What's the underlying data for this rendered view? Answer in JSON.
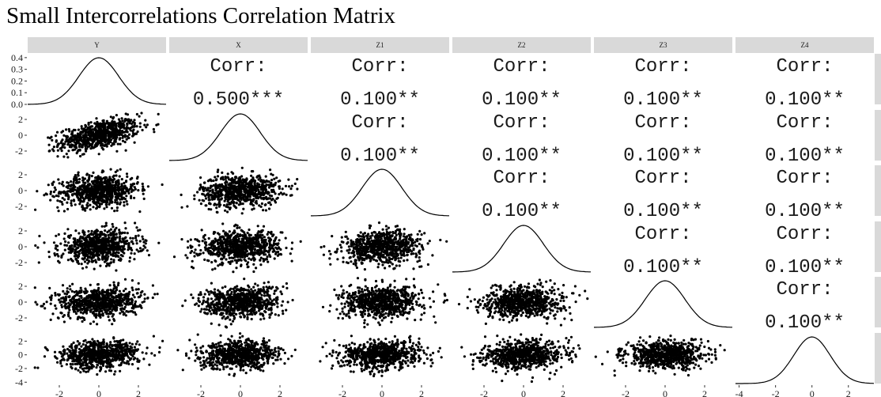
{
  "title": "Small Intercorrelations Correlation Matrix",
  "chart_data": {
    "type": "scatter",
    "title": "Small Intercorrelations Correlation Matrix",
    "variables": [
      "Y",
      "X",
      "Z1",
      "Z2",
      "Z3",
      "Z4"
    ],
    "lower_panels": "scatter",
    "diagonal_panels": "density",
    "upper_panels": "correlation",
    "correlation_label": "Corr:",
    "correlations": [
      {
        "row": "Y",
        "col": "X",
        "value": 0.5,
        "label": "0.500***"
      },
      {
        "row": "Y",
        "col": "Z1",
        "value": 0.1,
        "label": "0.100**"
      },
      {
        "row": "Y",
        "col": "Z2",
        "value": 0.1,
        "label": "0.100**"
      },
      {
        "row": "Y",
        "col": "Z3",
        "value": 0.1,
        "label": "0.100**"
      },
      {
        "row": "Y",
        "col": "Z4",
        "value": 0.1,
        "label": "0.100**"
      },
      {
        "row": "X",
        "col": "Z1",
        "value": 0.1,
        "label": "0.100**"
      },
      {
        "row": "X",
        "col": "Z2",
        "value": 0.1,
        "label": "0.100**"
      },
      {
        "row": "X",
        "col": "Z3",
        "value": 0.1,
        "label": "0.100**"
      },
      {
        "row": "X",
        "col": "Z4",
        "value": 0.1,
        "label": "0.100**"
      },
      {
        "row": "Z1",
        "col": "Z2",
        "value": 0.1,
        "label": "0.100**"
      },
      {
        "row": "Z1",
        "col": "Z3",
        "value": 0.1,
        "label": "0.100**"
      },
      {
        "row": "Z1",
        "col": "Z4",
        "value": 0.1,
        "label": "0.100**"
      },
      {
        "row": "Z2",
        "col": "Z3",
        "value": 0.1,
        "label": "0.100**"
      },
      {
        "row": "Z2",
        "col": "Z4",
        "value": 0.1,
        "label": "0.100**"
      },
      {
        "row": "Z3",
        "col": "Z4",
        "value": 0.1,
        "label": "0.100**"
      }
    ],
    "density_ylim": [
      0,
      0.42
    ],
    "density_yticks": [
      "0.4",
      "0.3",
      "0.2",
      "0.1",
      "0.0"
    ],
    "scatter_yticks": [
      "2",
      "0",
      "-2"
    ],
    "last_row_yticks": [
      "2",
      "0",
      "-2",
      "-4"
    ],
    "xlim": [
      -3.6,
      3.4
    ],
    "xlim_last": [
      -4.2,
      3.4
    ],
    "ylim": [
      -3.2,
      3.2
    ],
    "ylim_last": [
      -4.2,
      3.2
    ],
    "xticks": [
      "-2",
      "0",
      "2"
    ],
    "xticks_last": [
      "-4",
      "-2",
      "0",
      "2"
    ],
    "scatter_correlations": [
      {
        "row": "X",
        "col": "Y",
        "r": 0.5
      },
      {
        "row": "Z1",
        "col": "Y",
        "r": 0.1
      },
      {
        "row": "Z1",
        "col": "X",
        "r": 0.1
      },
      {
        "row": "Z2",
        "col": "Y",
        "r": 0.1
      },
      {
        "row": "Z2",
        "col": "X",
        "r": 0.1
      },
      {
        "row": "Z2",
        "col": "Z1",
        "r": 0.1
      },
      {
        "row": "Z3",
        "col": "Y",
        "r": 0.1
      },
      {
        "row": "Z3",
        "col": "X",
        "r": 0.1
      },
      {
        "row": "Z3",
        "col": "Z1",
        "r": 0.1
      },
      {
        "row": "Z3",
        "col": "Z2",
        "r": 0.1
      },
      {
        "row": "Z4",
        "col": "Y",
        "r": 0.1
      },
      {
        "row": "Z4",
        "col": "X",
        "r": 0.1
      },
      {
        "row": "Z4",
        "col": "Z1",
        "r": 0.1
      },
      {
        "row": "Z4",
        "col": "Z2",
        "r": 0.1
      },
      {
        "row": "Z4",
        "col": "Z3",
        "r": 0.1
      }
    ],
    "grid": false,
    "colors": {
      "strip": "#d9d9d9",
      "points": "#000000",
      "lines": "#000000",
      "text": "#1a1a1a"
    }
  }
}
